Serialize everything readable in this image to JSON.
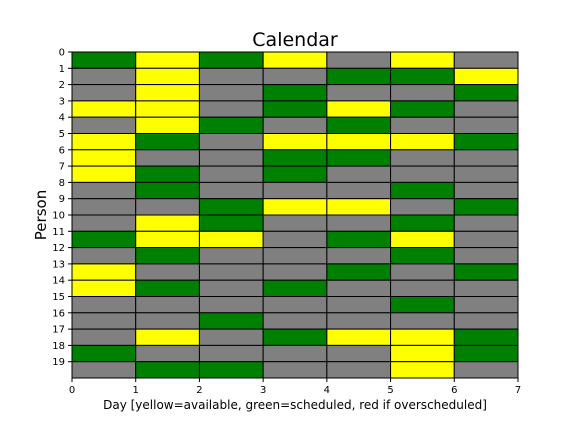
{
  "chart_data": {
    "type": "heatmap",
    "title": "Calendar",
    "xlabel": "Day [yellow=available, green=scheduled, red if overscheduled]",
    "ylabel": "Person",
    "xlim": [
      0,
      7
    ],
    "ylim": [
      0,
      20
    ],
    "y_inverted": true,
    "x_ticks": [
      "0",
      "1",
      "2",
      "3",
      "4",
      "5",
      "6",
      "7"
    ],
    "y_ticks": [
      "0",
      "1",
      "2",
      "3",
      "4",
      "5",
      "6",
      "7",
      "8",
      "9",
      "10",
      "11",
      "12",
      "13",
      "14",
      "15",
      "16",
      "17",
      "18",
      "19"
    ],
    "legend_key": {
      "G": "gray",
      "Y": "available",
      "S": "scheduled"
    },
    "colors": {
      "G": "#808080",
      "Y": "#ffff00",
      "S": "#008000",
      "edge": "#000000"
    },
    "days": [
      0,
      1,
      2,
      3,
      4,
      5,
      6
    ],
    "persons": [
      0,
      1,
      2,
      3,
      4,
      5,
      6,
      7,
      8,
      9,
      10,
      11,
      12,
      13,
      14,
      15,
      16,
      17,
      18,
      19
    ],
    "grid": [
      [
        "S",
        "Y",
        "S",
        "Y",
        "G",
        "Y",
        "G"
      ],
      [
        "G",
        "Y",
        "G",
        "G",
        "S",
        "S",
        "Y"
      ],
      [
        "G",
        "Y",
        "G",
        "S",
        "G",
        "G",
        "S"
      ],
      [
        "Y",
        "Y",
        "G",
        "S",
        "Y",
        "S",
        "G"
      ],
      [
        "G",
        "Y",
        "S",
        "G",
        "S",
        "G",
        "G"
      ],
      [
        "Y",
        "S",
        "G",
        "Y",
        "Y",
        "Y",
        "S"
      ],
      [
        "Y",
        "G",
        "G",
        "S",
        "S",
        "G",
        "G"
      ],
      [
        "Y",
        "S",
        "G",
        "S",
        "G",
        "G",
        "G"
      ],
      [
        "G",
        "S",
        "G",
        "G",
        "G",
        "S",
        "G"
      ],
      [
        "G",
        "G",
        "S",
        "Y",
        "Y",
        "G",
        "S"
      ],
      [
        "G",
        "Y",
        "S",
        "G",
        "G",
        "S",
        "G"
      ],
      [
        "S",
        "Y",
        "Y",
        "G",
        "S",
        "Y",
        "G"
      ],
      [
        "G",
        "S",
        "G",
        "G",
        "G",
        "S",
        "G"
      ],
      [
        "Y",
        "G",
        "G",
        "G",
        "S",
        "G",
        "S"
      ],
      [
        "Y",
        "S",
        "G",
        "S",
        "G",
        "G",
        "G"
      ],
      [
        "G",
        "G",
        "G",
        "G",
        "G",
        "S",
        "G"
      ],
      [
        "G",
        "G",
        "S",
        "G",
        "G",
        "G",
        "G"
      ],
      [
        "G",
        "Y",
        "G",
        "S",
        "Y",
        "Y",
        "S"
      ],
      [
        "S",
        "G",
        "G",
        "G",
        "G",
        "Y",
        "S"
      ],
      [
        "G",
        "S",
        "S",
        "G",
        "G",
        "Y",
        "G"
      ]
    ]
  }
}
